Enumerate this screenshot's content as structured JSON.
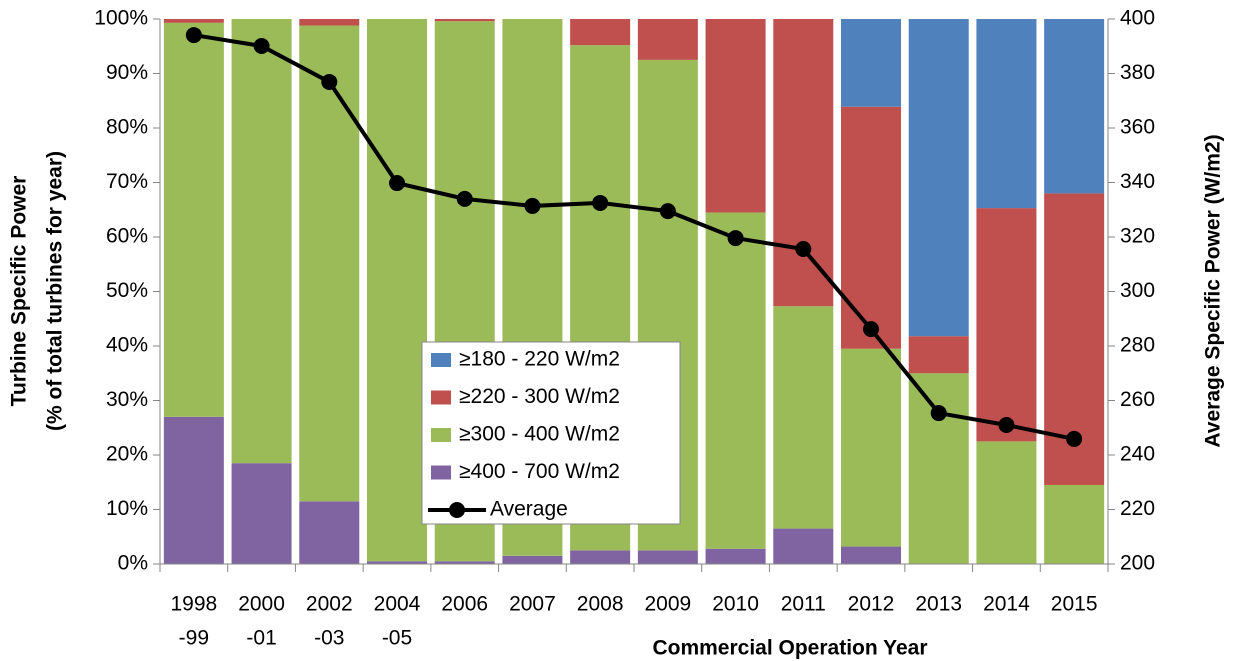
{
  "chart_data": {
    "type": "stacked_bar_line",
    "x_label": "Commercial Operation Year",
    "y_label": [
      "Turbine Specific Power",
      "(% of total turbines for year)"
    ],
    "y2_label": "Average Specific Power (W/m2)",
    "categories": [
      [
        "1998",
        "-99"
      ],
      [
        "2000",
        "-01"
      ],
      [
        "2002",
        "-03"
      ],
      [
        "2004",
        "-05"
      ],
      [
        "2006"
      ],
      [
        "2007"
      ],
      [
        "2008"
      ],
      [
        "2009"
      ],
      [
        "2010"
      ],
      [
        "2011"
      ],
      [
        "2012"
      ],
      [
        "2013"
      ],
      [
        "2014"
      ],
      [
        "2015"
      ]
    ],
    "series": [
      {
        "name": "≥400 - 700 W/m2",
        "color": "#8064a2",
        "values": [
          27,
          18.5,
          11.5,
          0.5,
          0.5,
          1.5,
          2.5,
          2.5,
          2.8,
          6.5,
          3.2,
          0,
          0,
          0
        ]
      },
      {
        "name": "≥300 - 400 W/m2",
        "color": "#9bbb59",
        "values": [
          72.3,
          81.5,
          87.3,
          99.5,
          99.1,
          98.5,
          92.7,
          90,
          61.7,
          40.8,
          36.3,
          35,
          22.5,
          14.5
        ]
      },
      {
        "name": "≥220 - 300 W/m2",
        "color": "#c0504d",
        "values": [
          0.7,
          0,
          1.2,
          0,
          0.4,
          0,
          4.8,
          7.5,
          35.5,
          52.7,
          44.4,
          6.8,
          42.8,
          53.5
        ]
      },
      {
        "name": "≥180 - 220 W/m2",
        "color": "#4f81bd",
        "values": [
          0,
          0,
          0,
          0,
          0,
          0,
          0,
          0,
          0,
          0,
          16.1,
          58.2,
          34.7,
          32
        ]
      },
      {
        "name": "Average",
        "color": "#000000",
        "axis": "y2",
        "values": [
          394.1,
          390.1,
          376.9,
          339.8,
          334,
          331.4,
          332.5,
          329.5,
          319.6,
          315.6,
          286.2,
          255.4,
          251,
          245.9
        ]
      }
    ],
    "ylim": [
      0,
      100
    ],
    "yticks": [
      {
        "value": 0,
        "label": "0%"
      },
      {
        "value": 10,
        "label": "10%"
      },
      {
        "value": 20,
        "label": "20%"
      },
      {
        "value": 30,
        "label": "30%"
      },
      {
        "value": 40,
        "label": "40%"
      },
      {
        "value": 50,
        "label": "50%"
      },
      {
        "value": 60,
        "label": "60%"
      },
      {
        "value": 70,
        "label": "70%"
      },
      {
        "value": 80,
        "label": "80%"
      },
      {
        "value": 90,
        "label": "90%"
      },
      {
        "value": 100,
        "label": "100%"
      }
    ],
    "y2lim": [
      200,
      400
    ],
    "y2ticks": [
      200,
      220,
      240,
      260,
      280,
      300,
      320,
      340,
      360,
      380,
      400
    ],
    "grid": false
  }
}
